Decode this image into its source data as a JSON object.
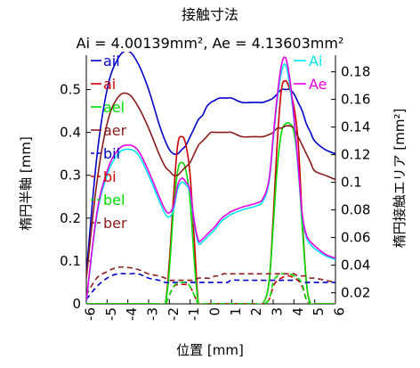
{
  "chart_data": {
    "type": "line",
    "title": "接触寸法",
    "subtitle": "Ai = 4.00139mm², Ae = 4.13603mm²",
    "xlabel": "位置 [mm]",
    "ylabel": "楕円半軸 [mm]",
    "y2label": "楕円接触エリア [mm²]",
    "xlim": [
      -6,
      6
    ],
    "ylim": [
      0,
      0.58
    ],
    "y2lim": [
      0.012,
      0.192
    ],
    "x_ticks": [
      -6,
      -5,
      -4,
      -3,
      -2,
      -1,
      0,
      1,
      2,
      3,
      4,
      5,
      6
    ],
    "y_ticks": [
      0,
      0.1,
      0.2,
      0.3,
      0.4,
      0.5
    ],
    "y2_ticks": [
      0.02,
      0.04,
      0.06,
      0.08,
      0.1,
      0.12,
      0.14,
      0.16,
      0.18
    ],
    "grid": false,
    "legend_left_placement": "top-left",
    "legend_right_placement": "top-right",
    "x": [
      -6.0,
      -5.5,
      -5.0,
      -4.5,
      -4.0,
      -3.5,
      -3.0,
      -2.5,
      -2.2,
      -2.0,
      -1.8,
      -1.6,
      -1.4,
      -1.2,
      -1.0,
      -0.8,
      -0.6,
      -0.4,
      -0.2,
      0.0,
      0.2,
      0.4,
      0.6,
      0.8,
      1.0,
      1.5,
      2.0,
      2.2,
      2.5,
      2.8,
      3.0,
      3.2,
      3.4,
      3.6,
      3.8,
      4.0,
      4.2,
      4.4,
      4.6,
      4.8,
      5.0,
      5.5,
      6.0
    ],
    "series": [
      {
        "name": "ail",
        "axis": "left",
        "color": "#0000c8",
        "dash": false,
        "values": [
          0.07,
          0.34,
          0.5,
          0.57,
          0.59,
          0.56,
          0.5,
          0.42,
          0.38,
          0.36,
          0.35,
          0.35,
          0.36,
          0.37,
          0.39,
          0.41,
          0.43,
          0.44,
          0.46,
          0.47,
          0.475,
          0.48,
          0.48,
          0.48,
          0.48,
          0.47,
          0.47,
          0.47,
          0.47,
          0.475,
          0.48,
          0.49,
          0.5,
          0.5,
          0.5,
          0.49,
          0.47,
          0.45,
          0.42,
          0.4,
          0.38,
          0.36,
          0.35
        ]
      },
      {
        "name": "ai",
        "axis": "left",
        "color": "#cc0000",
        "dash": false,
        "values": [
          0.0,
          0.0,
          0.0,
          0.0,
          0.0,
          0.0,
          0.0,
          0.0,
          0.0,
          0.1,
          0.25,
          0.37,
          0.39,
          0.37,
          0.3,
          0.15,
          0.0,
          0.0,
          0.0,
          0.0,
          0.0,
          0.0,
          0.0,
          0.0,
          0.0,
          0.0,
          0.0,
          0.0,
          0.0,
          0.05,
          0.2,
          0.38,
          0.5,
          0.52,
          0.5,
          0.46,
          0.38,
          0.2,
          0.05,
          0.0,
          0.0,
          0.0,
          0.0
        ]
      },
      {
        "name": "ael",
        "axis": "left",
        "color": "#00dd00",
        "dash": false,
        "values": [
          0.0,
          0.0,
          0.0,
          0.0,
          0.0,
          0.0,
          0.0,
          0.0,
          0.0,
          0.08,
          0.22,
          0.31,
          0.33,
          0.31,
          0.24,
          0.1,
          0.0,
          0.0,
          0.0,
          0.0,
          0.0,
          0.0,
          0.0,
          0.0,
          0.0,
          0.0,
          0.0,
          0.0,
          0.0,
          0.05,
          0.18,
          0.32,
          0.4,
          0.42,
          0.42,
          0.4,
          0.32,
          0.18,
          0.05,
          0.0,
          0.0,
          0.0,
          0.0
        ]
      },
      {
        "name": "aer",
        "axis": "left",
        "color": "#8b1a1a",
        "dash": false,
        "values": [
          0.06,
          0.28,
          0.42,
          0.48,
          0.49,
          0.46,
          0.41,
          0.35,
          0.32,
          0.31,
          0.3,
          0.3,
          0.31,
          0.32,
          0.33,
          0.35,
          0.37,
          0.38,
          0.39,
          0.4,
          0.4,
          0.4,
          0.4,
          0.4,
          0.4,
          0.39,
          0.39,
          0.39,
          0.39,
          0.395,
          0.4,
          0.41,
          0.41,
          0.415,
          0.415,
          0.41,
          0.39,
          0.37,
          0.35,
          0.33,
          0.31,
          0.3,
          0.29
        ]
      },
      {
        "name": "bil",
        "axis": "left",
        "color": "#0000c8",
        "dash": true,
        "values": [
          0.01,
          0.04,
          0.06,
          0.07,
          0.07,
          0.07,
          0.06,
          0.055,
          0.05,
          0.05,
          0.05,
          0.05,
          0.05,
          0.05,
          0.05,
          0.05,
          0.05,
          0.05,
          0.05,
          0.05,
          0.05,
          0.05,
          0.05,
          0.05,
          0.055,
          0.055,
          0.055,
          0.055,
          0.055,
          0.055,
          0.055,
          0.055,
          0.055,
          0.055,
          0.055,
          0.055,
          0.055,
          0.05,
          0.05,
          0.05,
          0.05,
          0.05,
          0.05
        ]
      },
      {
        "name": "bi",
        "axis": "left",
        "color": "#cc0000",
        "dash": true,
        "values": [
          0.0,
          0.0,
          0.0,
          0.0,
          0.0,
          0.0,
          0.0,
          0.0,
          0.0,
          0.02,
          0.04,
          0.045,
          0.045,
          0.045,
          0.04,
          0.02,
          0.0,
          0.0,
          0.0,
          0.0,
          0.0,
          0.0,
          0.0,
          0.0,
          0.0,
          0.0,
          0.0,
          0.0,
          0.0,
          0.01,
          0.04,
          0.055,
          0.06,
          0.065,
          0.065,
          0.06,
          0.055,
          0.04,
          0.01,
          0.0,
          0.0,
          0.0,
          0.0
        ]
      },
      {
        "name": "bel",
        "axis": "left",
        "color": "#00dd00",
        "dash": true,
        "values": [
          0.0,
          0.0,
          0.0,
          0.0,
          0.0,
          0.0,
          0.0,
          0.0,
          0.0,
          0.02,
          0.04,
          0.05,
          0.05,
          0.05,
          0.04,
          0.02,
          0.0,
          0.0,
          0.0,
          0.0,
          0.0,
          0.0,
          0.0,
          0.0,
          0.0,
          0.0,
          0.0,
          0.0,
          0.0,
          0.01,
          0.05,
          0.065,
          0.07,
          0.07,
          0.07,
          0.065,
          0.06,
          0.045,
          0.01,
          0.0,
          0.0,
          0.0,
          0.0
        ]
      },
      {
        "name": "ber",
        "axis": "left",
        "color": "#8b1a1a",
        "dash": true,
        "values": [
          0.02,
          0.06,
          0.075,
          0.085,
          0.085,
          0.08,
          0.07,
          0.065,
          0.06,
          0.055,
          0.055,
          0.055,
          0.055,
          0.055,
          0.055,
          0.055,
          0.06,
          0.06,
          0.06,
          0.06,
          0.065,
          0.065,
          0.07,
          0.07,
          0.07,
          0.07,
          0.07,
          0.07,
          0.07,
          0.07,
          0.07,
          0.07,
          0.07,
          0.07,
          0.07,
          0.07,
          0.065,
          0.065,
          0.065,
          0.06,
          0.06,
          0.055,
          0.05
        ]
      },
      {
        "name": "Ai",
        "axis": "right",
        "color": "#00e5ee",
        "dash": false,
        "values": [
          0.013,
          0.075,
          0.105,
          0.12,
          0.124,
          0.12,
          0.105,
          0.087,
          0.077,
          0.075,
          0.08,
          0.095,
          0.1,
          0.098,
          0.092,
          0.07,
          0.056,
          0.057,
          0.06,
          0.063,
          0.066,
          0.07,
          0.073,
          0.075,
          0.077,
          0.08,
          0.082,
          0.083,
          0.086,
          0.1,
          0.13,
          0.16,
          0.18,
          0.185,
          0.17,
          0.145,
          0.11,
          0.075,
          0.06,
          0.055,
          0.052,
          0.047,
          0.044
        ]
      },
      {
        "name": "Ae",
        "axis": "right",
        "color": "#e600e6",
        "dash": false,
        "values": [
          0.014,
          0.077,
          0.108,
          0.123,
          0.127,
          0.123,
          0.108,
          0.09,
          0.08,
          0.078,
          0.083,
          0.098,
          0.103,
          0.1,
          0.094,
          0.072,
          0.058,
          0.059,
          0.062,
          0.065,
          0.068,
          0.072,
          0.075,
          0.077,
          0.079,
          0.082,
          0.084,
          0.085,
          0.088,
          0.102,
          0.133,
          0.163,
          0.185,
          0.19,
          0.175,
          0.148,
          0.113,
          0.077,
          0.062,
          0.057,
          0.054,
          0.048,
          0.045
        ]
      }
    ]
  }
}
